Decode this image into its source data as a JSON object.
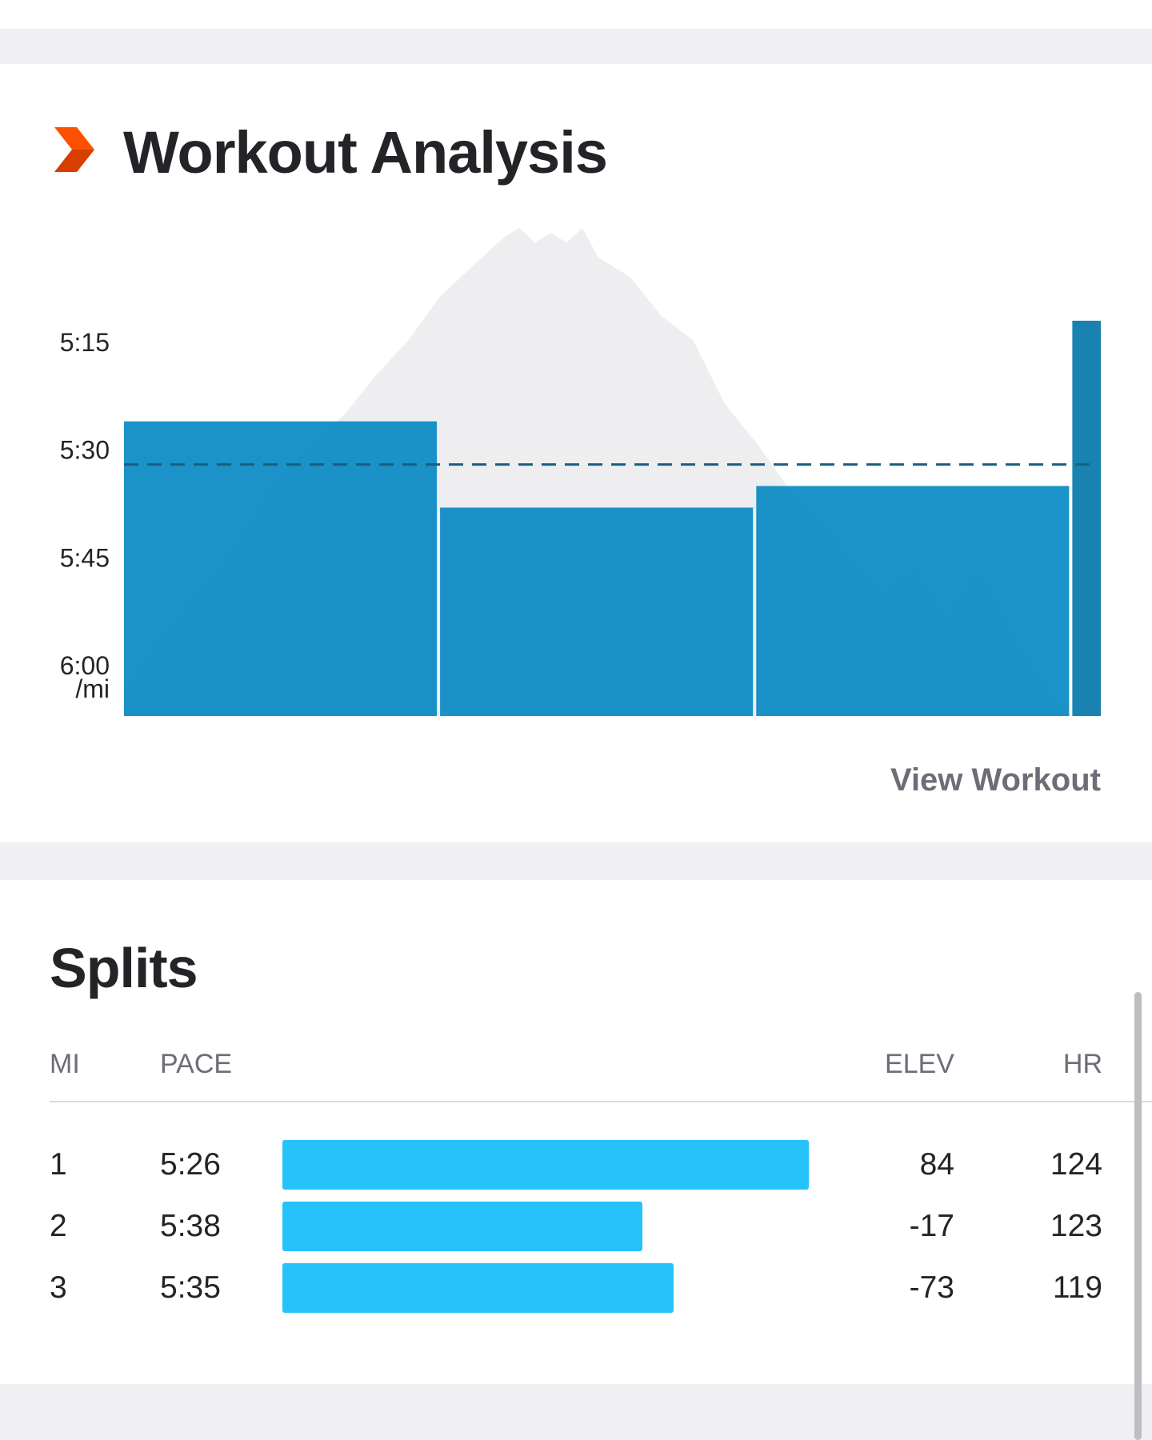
{
  "colors": {
    "brand_orange": "#fc5200",
    "bar_blue": "#0a8ac4",
    "split_bar_blue": "#26c2fc",
    "elevation_gray": "#eeeef0",
    "average_line": "#1a5f80"
  },
  "analysis": {
    "title": "Workout Analysis",
    "icon": "strava-chevron-icon",
    "view_link": "View Workout"
  },
  "chart_data": {
    "type": "bar",
    "title": "Workout Analysis",
    "ylabel": "/mi",
    "y_unit": "seconds per mile",
    "y_ticks": [
      {
        "label": "5:15",
        "value": 315
      },
      {
        "label": "5:30",
        "value": 330
      },
      {
        "label": "5:45",
        "value": 345
      },
      {
        "label": "6:00",
        "value": 360
      }
    ],
    "ylim": [
      367,
      308
    ],
    "x_unit": "miles",
    "splits": [
      {
        "mile": 1,
        "distance": 1.0,
        "pace": "5:26",
        "pace_seconds": 326
      },
      {
        "mile": 2,
        "distance": 1.0,
        "pace": "5:38",
        "pace_seconds": 338
      },
      {
        "mile": 3,
        "distance": 1.0,
        "pace": "5:35",
        "pace_seconds": 335
      },
      {
        "mile": 4,
        "distance": 0.09,
        "pace": "",
        "pace_seconds": 312
      }
    ],
    "average_pace_seconds": 332,
    "elevation_profile": {
      "description": "relative elevation silhouette behind bars (0 = min, 1 = max) by distance in miles",
      "x": [
        0,
        0.1,
        0.3,
        0.5,
        0.7,
        0.8,
        0.9,
        1.0,
        1.1,
        1.2,
        1.25,
        1.3,
        1.35,
        1.4,
        1.45,
        1.5,
        1.6,
        1.7,
        1.8,
        1.9,
        2.0,
        2.1,
        2.2,
        2.3,
        2.4,
        2.5,
        2.6,
        2.7,
        2.75,
        2.8,
        2.9,
        3.0,
        3.09
      ],
      "y": [
        0.05,
        0.15,
        0.3,
        0.5,
        0.62,
        0.7,
        0.77,
        0.86,
        0.92,
        0.98,
        1.0,
        0.97,
        0.99,
        0.97,
        1.0,
        0.94,
        0.9,
        0.82,
        0.77,
        0.64,
        0.56,
        0.47,
        0.4,
        0.32,
        0.25,
        0.3,
        0.2,
        0.3,
        0.25,
        0.18,
        0.07,
        0.0,
        0.0
      ]
    }
  },
  "splits": {
    "title": "Splits",
    "columns": {
      "mi": "MI",
      "pace": "PACE",
      "elev": "ELEV",
      "hr": "HR"
    },
    "bar_scale_seconds": [
      300,
      326
    ],
    "rows": [
      {
        "mi": "1",
        "pace": "5:26",
        "pace_seconds": 326,
        "elev": "84",
        "hr": "124"
      },
      {
        "mi": "2",
        "pace": "5:38",
        "pace_seconds": 338,
        "elev": "-17",
        "hr": "123"
      },
      {
        "mi": "3",
        "pace": "5:35",
        "pace_seconds": 335,
        "elev": "-73",
        "hr": "119"
      }
    ]
  }
}
